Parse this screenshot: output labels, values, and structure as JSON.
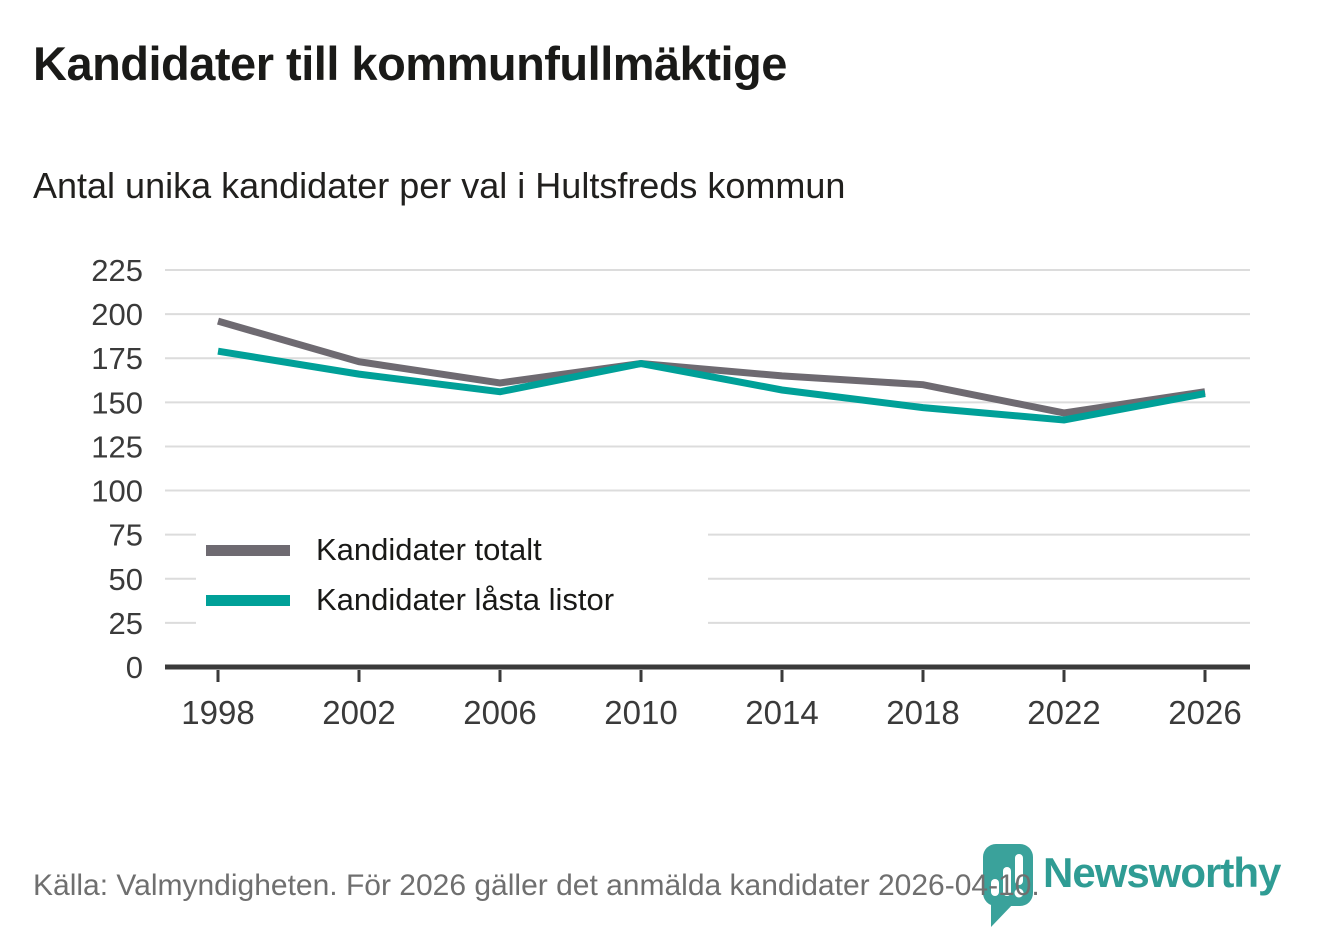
{
  "title": "Kandidater till kommunfullmäktige",
  "subtitle": "Antal unika kandidater per val i Hultsfreds kommun",
  "footer": {
    "source_note": "Källa: Valmyndigheten. För 2026 gäller det anmälda kandidater 2026-04-10."
  },
  "branding": {
    "name": "Newsworthy",
    "icon": "bar-chart-pin-icon",
    "color": "#2f9c94"
  },
  "colors": {
    "series_total": "#6e6a71",
    "series_locked": "#00a098",
    "grid": "#dcdcdc",
    "axis": "#3a3a3a",
    "tick_label": "#3a3a3a",
    "background": "#ffffff"
  },
  "chart_data": {
    "type": "line",
    "x": [
      1998,
      2002,
      2006,
      2010,
      2014,
      2018,
      2022,
      2026
    ],
    "series": [
      {
        "name": "Kandidater totalt",
        "color": "#6e6a71",
        "values": [
          196,
          173,
          161,
          172,
          165,
          160,
          144,
          156
        ]
      },
      {
        "name": "Kandidater låsta listor",
        "color": "#00a098",
        "values": [
          179,
          166,
          156,
          172,
          157,
          147,
          140,
          155
        ]
      }
    ],
    "title": "Kandidater till kommunfullmäktige",
    "subtitle": "Antal unika kandidater per val i Hultsfreds kommun",
    "xlabel": "",
    "ylabel": "",
    "ylim": [
      0,
      225
    ],
    "ytick_step": 25,
    "grid": "horizontal",
    "legend_position": "inside-lower-left"
  }
}
